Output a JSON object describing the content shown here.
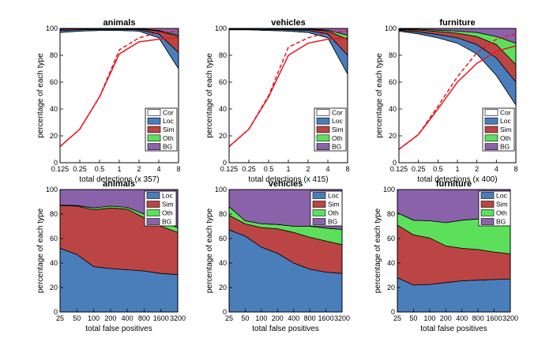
{
  "colors": {
    "Cor": "#ffffff",
    "Loc": "#4a7ebb",
    "Sim": "#bb4545",
    "Oth": "#5ce05c",
    "BG": "#8a62aa",
    "curve": "#e8161e"
  },
  "chart_data": [
    {
      "type": "area",
      "title": "animals",
      "xlabel": "total detections (x 357)",
      "ylabel": "percentage of each type",
      "x_ticks": [
        "0.125",
        "0.25",
        "0.5",
        "1",
        "2",
        "4",
        "8"
      ],
      "x": [
        0.125,
        0.25,
        0.5,
        1,
        2,
        4,
        8
      ],
      "ylim": [
        0,
        100
      ],
      "y_ticks": [
        0,
        20,
        40,
        60,
        80,
        100
      ],
      "stack_order": [
        "Cor",
        "Loc",
        "Sim",
        "Oth",
        "BG"
      ],
      "series": [
        {
          "name": "Cor",
          "values": [
            97,
            98,
            98.5,
            98.5,
            98,
            93,
            70
          ]
        },
        {
          "name": "Loc",
          "values": [
            1.5,
            1,
            0.8,
            0.8,
            1,
            3,
            12
          ]
        },
        {
          "name": "Sim",
          "values": [
            1,
            0.7,
            0.5,
            0.5,
            0.6,
            2,
            12
          ]
        },
        {
          "name": "Oth",
          "values": [
            0.2,
            0.1,
            0.1,
            0.1,
            0.2,
            0.5,
            1
          ]
        },
        {
          "name": "BG",
          "values": [
            0.3,
            0.2,
            0.1,
            0.1,
            0.2,
            1.5,
            5
          ]
        }
      ],
      "recall_solid": [
        12,
        25,
        49,
        81,
        90,
        92,
        93
      ],
      "recall_dashed": [
        12,
        25,
        49,
        84,
        93,
        97,
        98
      ],
      "legend": [
        "Cor",
        "Loc",
        "Sim",
        "Oth",
        "BG"
      ],
      "legend_placement": "bottom-right"
    },
    {
      "type": "area",
      "title": "vehicles",
      "xlabel": "total detections (x 415)",
      "ylabel": "percentage of each type",
      "x_ticks": [
        "0.125",
        "0.25",
        "0.5",
        "1",
        "2",
        "4",
        "8"
      ],
      "x": [
        0.125,
        0.25,
        0.5,
        1,
        2,
        4,
        8
      ],
      "ylim": [
        0,
        100
      ],
      "y_ticks": [
        0,
        20,
        40,
        60,
        80,
        100
      ],
      "stack_order": [
        "Cor",
        "Loc",
        "Sim",
        "Oth",
        "BG"
      ],
      "series": [
        {
          "name": "Cor",
          "values": [
            99,
            99,
            98.5,
            98,
            97,
            93,
            66
          ]
        },
        {
          "name": "Loc",
          "values": [
            0.5,
            0.5,
            0.7,
            1,
            1.5,
            3,
            14
          ]
        },
        {
          "name": "Sim",
          "values": [
            0.2,
            0.2,
            0.3,
            0.5,
            0.8,
            2,
            12
          ]
        },
        {
          "name": "Oth",
          "values": [
            0.1,
            0.1,
            0.2,
            0.2,
            0.3,
            0.7,
            3
          ]
        },
        {
          "name": "BG",
          "values": [
            0.2,
            0.2,
            0.3,
            0.3,
            0.4,
            1.3,
            5
          ]
        }
      ],
      "recall_solid": [
        12,
        25,
        49,
        80,
        89,
        92,
        93
      ],
      "recall_dashed": [
        12,
        25,
        50,
        86,
        93,
        97,
        98
      ],
      "legend": [
        "Cor",
        "Loc",
        "Sim",
        "Oth",
        "BG"
      ],
      "legend_placement": "bottom-right"
    },
    {
      "type": "area",
      "title": "furniture",
      "xlabel": "total detections (x 400)",
      "ylabel": "percentage of each type",
      "x_ticks": [
        "0.125",
        "0.25",
        "0.5",
        "1",
        "2",
        "4",
        "8"
      ],
      "x": [
        0.125,
        0.25,
        0.5,
        1,
        2,
        4,
        8
      ],
      "ylim": [
        0,
        100
      ],
      "y_ticks": [
        0,
        20,
        40,
        60,
        80,
        100
      ],
      "stack_order": [
        "Cor",
        "Loc",
        "Sim",
        "Oth",
        "BG"
      ],
      "series": [
        {
          "name": "Cor",
          "values": [
            98,
            96,
            93,
            89,
            81,
            65,
            43
          ]
        },
        {
          "name": "Loc",
          "values": [
            0.7,
            1.5,
            2.5,
            4,
            7,
            13,
            17
          ]
        },
        {
          "name": "Sim",
          "values": [
            0.6,
            1.3,
            2.2,
            3.5,
            6,
            10,
            13
          ]
        },
        {
          "name": "Oth",
          "values": [
            0.3,
            0.6,
            1,
            1.5,
            3,
            6,
            16
          ]
        },
        {
          "name": "BG",
          "values": [
            0.4,
            0.6,
            1.3,
            2,
            3,
            6,
            11
          ]
        }
      ],
      "recall_solid": [
        10,
        21,
        40,
        60,
        74,
        83,
        87
      ],
      "recall_dashed": [
        10,
        21,
        42,
        64,
        82,
        92,
        96
      ],
      "legend": [
        "Cor",
        "Loc",
        "Sim",
        "Oth",
        "BG"
      ],
      "legend_placement": "bottom-right"
    },
    {
      "type": "area",
      "title": "animals",
      "xlabel": "total false positives",
      "ylabel": "percentage of each type",
      "x_ticks": [
        "25",
        "50",
        "100",
        "200",
        "400",
        "800",
        "1600",
        "3200"
      ],
      "x": [
        25,
        50,
        100,
        200,
        400,
        800,
        1600,
        3200
      ],
      "ylim": [
        0,
        100
      ],
      "y_ticks": [
        0,
        20,
        40,
        60,
        80,
        100
      ],
      "stack_order": [
        "Loc",
        "Sim",
        "Oth",
        "BG"
      ],
      "series": [
        {
          "name": "Loc",
          "values": [
            52,
            47,
            37,
            35.5,
            34.5,
            33.5,
            31.5,
            30.5
          ]
        },
        {
          "name": "Sim",
          "values": [
            35,
            39.5,
            46.5,
            49.5,
            49.5,
            43.5,
            38.5,
            34.5
          ]
        },
        {
          "name": "Oth",
          "values": [
            0.3,
            0.5,
            1.5,
            1.5,
            1.5,
            3,
            4,
            4
          ]
        },
        {
          "name": "BG",
          "values": [
            12.7,
            13,
            15,
            13.5,
            14.5,
            20,
            26,
            31
          ]
        }
      ],
      "legend": [
        "Loc",
        "Sim",
        "Oth",
        "BG"
      ],
      "legend_placement": "top-right"
    },
    {
      "type": "area",
      "title": "vehicles",
      "xlabel": "total false positives",
      "ylabel": "percentage of each type",
      "x_ticks": [
        "25",
        "50",
        "100",
        "200",
        "400",
        "800",
        "1600",
        "3200"
      ],
      "x": [
        25,
        50,
        100,
        200,
        400,
        800,
        1600,
        3200
      ],
      "ylim": [
        0,
        100
      ],
      "y_ticks": [
        0,
        20,
        40,
        60,
        80,
        100
      ],
      "stack_order": [
        "Loc",
        "Sim",
        "Oth",
        "BG"
      ],
      "series": [
        {
          "name": "Loc",
          "values": [
            67,
            62,
            53,
            48,
            40,
            35,
            32.5,
            31.5
          ]
        },
        {
          "name": "Sim",
          "values": [
            12,
            10,
            16,
            20,
            25,
            26,
            25.5,
            23.5
          ]
        },
        {
          "name": "Oth",
          "values": [
            7,
            2.5,
            3,
            3.5,
            5,
            9,
            10.5,
            12.5
          ]
        },
        {
          "name": "BG",
          "values": [
            14,
            25.5,
            28,
            28.5,
            30,
            30,
            31.5,
            32.5
          ]
        }
      ],
      "legend": [
        "Loc",
        "Sim",
        "Oth",
        "BG"
      ],
      "legend_placement": "top-right"
    },
    {
      "type": "area",
      "title": "furniture",
      "xlabel": "total false positives",
      "ylabel": "percentage of each type",
      "x_ticks": [
        "25",
        "50",
        "100",
        "200",
        "400",
        "800",
        "1600",
        "3200"
      ],
      "x": [
        25,
        50,
        100,
        200,
        400,
        800,
        1600,
        3200
      ],
      "ylim": [
        0,
        100
      ],
      "y_ticks": [
        0,
        20,
        40,
        60,
        80,
        100
      ],
      "stack_order": [
        "Loc",
        "Sim",
        "Oth",
        "BG"
      ],
      "series": [
        {
          "name": "Loc",
          "values": [
            28,
            22,
            22.5,
            24,
            25.5,
            26,
            26.5,
            27
          ]
        },
        {
          "name": "Sim",
          "values": [
            43,
            41,
            38,
            30,
            26.5,
            25,
            22.5,
            20.5
          ]
        },
        {
          "name": "Oth",
          "values": [
            10,
            12,
            14,
            19,
            23,
            25,
            28,
            29
          ]
        },
        {
          "name": "BG",
          "values": [
            19,
            25,
            25.5,
            27,
            25,
            24,
            23,
            23.5
          ]
        }
      ],
      "legend": [
        "Loc",
        "Sim",
        "Oth",
        "BG"
      ],
      "legend_placement": "top-right"
    }
  ]
}
